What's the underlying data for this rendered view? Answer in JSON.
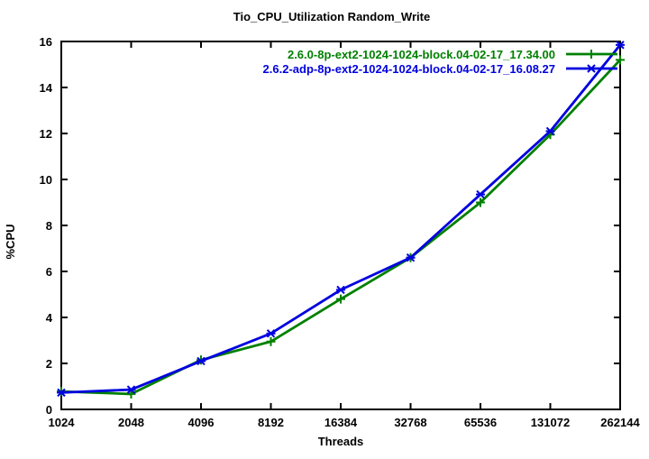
{
  "chart_data": {
    "type": "line",
    "title": "Tio_CPU_Utilization Random_Write",
    "xlabel": "Threads",
    "ylabel": "%CPU",
    "x_scale": "log2",
    "categories": [
      "1024",
      "2048",
      "4096",
      "8192",
      "16384",
      "32768",
      "65536",
      "131072",
      "262144"
    ],
    "yticks": [
      "0",
      "2",
      "4",
      "6",
      "8",
      "10",
      "12",
      "14",
      "16"
    ],
    "ylim": [
      0,
      16
    ],
    "grid": "off",
    "legend_position": "top-right-inside",
    "axis_color": "#000000",
    "series": [
      {
        "name": "2.6.0-8p-ext2-1024-1024-block.04-02-17_17.34.00",
        "color": "#008000",
        "marker": "plus",
        "values": [
          0.78,
          0.67,
          2.15,
          2.95,
          4.8,
          6.6,
          9.0,
          11.95,
          15.2
        ]
      },
      {
        "name": "2.6.2-adp-8p-ext2-1024-1024-block.04-02-17_16.08.27",
        "color": "#0000e0",
        "marker": "asterisk",
        "values": [
          0.73,
          0.86,
          2.1,
          3.3,
          5.2,
          6.6,
          9.35,
          12.1,
          15.85
        ]
      }
    ]
  }
}
